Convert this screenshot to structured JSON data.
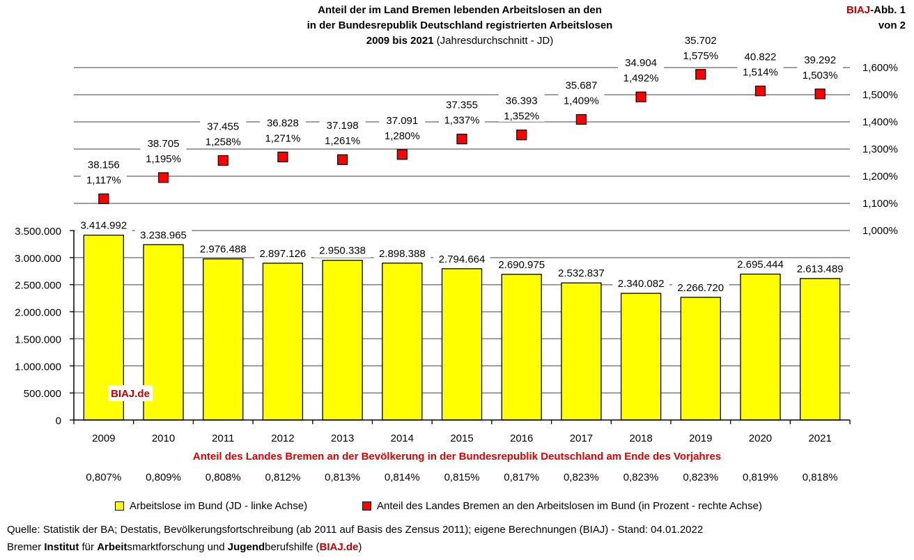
{
  "header": {
    "title_line1": "Anteil der im Land Bremen lebenden Arbeitslosen an den",
    "title_line2": "in der Bundesrepublik Deutschland registrierten Arbeitslosen",
    "title_line3_bold": "2009 bis 2021",
    "title_line3_normal": " (Jahresdurchschnitt - JD)",
    "badge_brand": "BIAJ",
    "badge_rest": "-Abb. 1",
    "badge_line2": "von 2"
  },
  "chart_data": {
    "type": "bar",
    "categories": [
      "2009",
      "2010",
      "2011",
      "2012",
      "2013",
      "2014",
      "2015",
      "2016",
      "2017",
      "2018",
      "2019",
      "2020",
      "2021"
    ],
    "series": [
      {
        "name": "Arbeitslose im Bund (JD - linke Achse)",
        "axis": "left",
        "color": "#ffff00",
        "values": [
          3414992,
          3238965,
          2976488,
          2897126,
          2950338,
          2898388,
          2794664,
          2690975,
          2532837,
          2340082,
          2266720,
          2695444,
          2613489
        ],
        "labels": [
          "3.414.992",
          "3.238.965",
          "2.976.488",
          "2.897.126",
          "2.950.338",
          "2.898.388",
          "2.794.664",
          "2.690.975",
          "2.532.837",
          "2.340.082",
          "2.266.720",
          "2.695.444",
          "2.613.489"
        ]
      },
      {
        "name": "Anteil des Landes Bremen an den Arbeitslosen im Bund (in Prozent - rechte Achse)",
        "axis": "right",
        "type": "scatter",
        "color": "#ff0000",
        "values": [
          1.117,
          1.195,
          1.258,
          1.271,
          1.261,
          1.28,
          1.337,
          1.352,
          1.409,
          1.492,
          1.575,
          1.514,
          1.503
        ],
        "labels": [
          "1,117%",
          "1,195%",
          "1,258%",
          "1,271%",
          "1,261%",
          "1,280%",
          "1,337%",
          "1,352%",
          "1,409%",
          "1,492%",
          "1,575%",
          "1,514%",
          "1,503%"
        ],
        "count_labels": [
          "38.156",
          "38.705",
          "37.455",
          "36.828",
          "37.198",
          "37.091",
          "37.355",
          "36.393",
          "35.687",
          "34.904",
          "35.702",
          "40.822",
          "39.292"
        ]
      }
    ],
    "left_axis": {
      "ylim": [
        0,
        3500000
      ],
      "ticks": [
        0,
        500000,
        1000000,
        1500000,
        2000000,
        2500000,
        3000000,
        3500000
      ],
      "tick_labels": [
        "0",
        "500.000",
        "1.000.000",
        "1.500.000",
        "2.000.000",
        "2.500.000",
        "3.000.000",
        "3.500.000"
      ]
    },
    "right_axis": {
      "ylim": [
        1.0,
        1.6
      ],
      "ticks": [
        1.0,
        1.1,
        1.2,
        1.3,
        1.4,
        1.5,
        1.6
      ],
      "tick_labels": [
        "1,000%",
        "1,100%",
        "1,200%",
        "1,300%",
        "1,400%",
        "1,500%",
        "1,600%"
      ]
    },
    "watermark": "BIAJ.de",
    "gridlines": true
  },
  "population_share": {
    "title": "Anteil des Landes Bremen an der Bevölkerung in der Bundesrepublik Deutschland am Ende des Vorjahres",
    "values": [
      "0,807%",
      "0,809%",
      "0,808%",
      "0,812%",
      "0,813%",
      "0,814%",
      "0,815%",
      "0,817%",
      "0,823%",
      "0,823%",
      "0,823%",
      "0,819%",
      "0,818%"
    ]
  },
  "legend": {
    "bar_label": "Arbeitslose im Bund (JD - linke Achse)",
    "marker_label": "Anteil des Landes Bremen an den Arbeitslosen im Bund (in Prozent - rechte Achse)"
  },
  "footer": {
    "source": "Quelle: Statistik der BA; Destatis, Bevölkerungsfortschreibung (ab 2011 auf Basis des Zensus 2011); eigene Berechnungen (BIAJ) - Stand: 04.01.2022",
    "inst_1": "Bremer ",
    "inst_2": "Institut",
    "inst_3": " für ",
    "inst_4": "Arbeit",
    "inst_5": "smarktforschung und ",
    "inst_6": "Jugend",
    "inst_7": "berufshilfe (",
    "inst_8": "BIAJ.de",
    "inst_9": ")"
  }
}
